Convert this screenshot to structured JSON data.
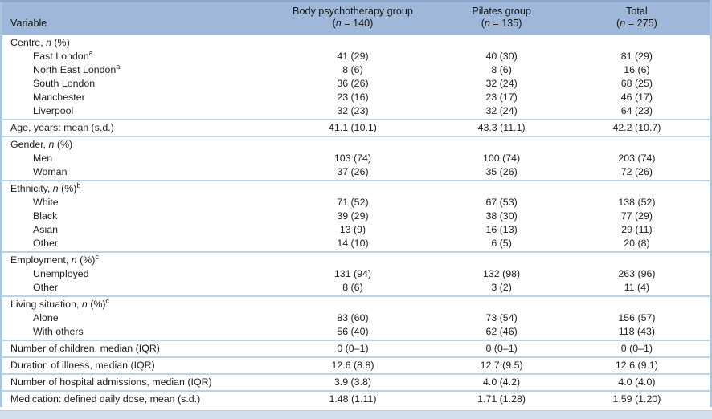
{
  "colors": {
    "header_bg": "#9fb7d8",
    "top_rule": "#8fa9cc",
    "section_rule": "#b9d2e8",
    "side_rule": "#a8c5dd",
    "footer_strip_bg": "#d3dfee",
    "text": "#1d1d1d"
  },
  "table": {
    "header": {
      "variable_label": "Variable",
      "cols": [
        {
          "title": "Body psychotherapy group",
          "pre": "(",
          "it": "n",
          "post": " = 140)"
        },
        {
          "title": "Pilates group",
          "pre": "(",
          "it": "n",
          "post": " = 135)"
        },
        {
          "title": "Total",
          "pre": "(",
          "it": "n",
          "post": " = 275)"
        }
      ]
    },
    "groups": [
      {
        "rows": [
          {
            "pre": "Centre, ",
            "it": "n",
            "post": " (%)"
          },
          {
            "pre": "East London",
            "sup": "a",
            "indent": true,
            "c1": "41 (29)",
            "c2": "40 (30)",
            "c3": "81 (29)"
          },
          {
            "pre": "North East London",
            "sup": "a",
            "indent": true,
            "c1": "8 (6)",
            "c2": "8 (6)",
            "c3": "16 (6)"
          },
          {
            "pre": "South London",
            "indent": true,
            "c1": "36 (26)",
            "c2": "32 (24)",
            "c3": "68 (25)"
          },
          {
            "pre": "Manchester",
            "indent": true,
            "c1": "23 (16)",
            "c2": "23 (17)",
            "c3": "46 (17)"
          },
          {
            "pre": "Liverpool",
            "indent": true,
            "c1": "32 (23)",
            "c2": "32 (24)",
            "c3": "64 (23)"
          }
        ]
      },
      {
        "rows": [
          {
            "pre": "Age, years: mean (s.d.)",
            "c1": "41.1 (10.1)",
            "c2": "43.3 (11.1)",
            "c3": "42.2 (10.7)"
          }
        ]
      },
      {
        "rows": [
          {
            "pre": "Gender, ",
            "it": "n",
            "post": " (%)"
          },
          {
            "pre": "Men",
            "indent": true,
            "c1": "103 (74)",
            "c2": "100 (74)",
            "c3": "203 (74)"
          },
          {
            "pre": "Woman",
            "indent": true,
            "c1": "37 (26)",
            "c2": "35 (26)",
            "c3": "72 (26)"
          }
        ]
      },
      {
        "rows": [
          {
            "pre": "Ethnicity, ",
            "it": "n",
            "post": " (%)",
            "sup": "b"
          },
          {
            "pre": "White",
            "indent": true,
            "c1": "71 (52)",
            "c2": "67 (53)",
            "c3": "138 (52)"
          },
          {
            "pre": "Black",
            "indent": true,
            "c1": "39 (29)",
            "c2": "38 (30)",
            "c3": "77 (29)"
          },
          {
            "pre": "Asian",
            "indent": true,
            "c1": "13 (9)",
            "c2": "16 (13)",
            "c3": "29 (11)"
          },
          {
            "pre": "Other",
            "indent": true,
            "c1": "14 (10)",
            "c2": "6 (5)",
            "c3": "20 (8)"
          }
        ]
      },
      {
        "rows": [
          {
            "pre": "Employment, ",
            "it": "n",
            "post": " (%)",
            "sup": "c"
          },
          {
            "pre": "Unemployed",
            "indent": true,
            "c1": "131 (94)",
            "c2": "132 (98)",
            "c3": "263 (96)"
          },
          {
            "pre": "Other",
            "indent": true,
            "c1": "8 (6)",
            "c2": "3 (2)",
            "c3": "11 (4)"
          }
        ]
      },
      {
        "rows": [
          {
            "pre": "Living situation, ",
            "it": "n",
            "post": " (%)",
            "sup": "c"
          },
          {
            "pre": "Alone",
            "indent": true,
            "c1": "83 (60)",
            "c2": "73 (54)",
            "c3": "156 (57)"
          },
          {
            "pre": "With others",
            "indent": true,
            "c1": "56 (40)",
            "c2": "62 (46)",
            "c3": "118 (43)"
          }
        ]
      },
      {
        "rows": [
          {
            "pre": "Number of children, median (IQR)",
            "c1": "0 (0–1)",
            "c2": "0 (0–1)",
            "c3": "0 (0–1)"
          }
        ]
      },
      {
        "rows": [
          {
            "pre": "Duration of illness, median (IQR)",
            "c1": "12.6 (8.8)",
            "c2": "12.7 (9.5)",
            "c3": "12.6 (9.1)"
          }
        ]
      },
      {
        "rows": [
          {
            "pre": "Number of hospital admissions, median (IQR)",
            "c1": "3.9 (3.8)",
            "c2": "4.0 (4.2)",
            "c3": "4.0 (4.0)"
          }
        ]
      },
      {
        "rows": [
          {
            "pre": "Medication: defined daily dose, mean (s.d.)",
            "c1": "1.48 (1.11)",
            "c2": "1.71 (1.28)",
            "c3": "1.59 (1.20)"
          }
        ]
      }
    ]
  }
}
